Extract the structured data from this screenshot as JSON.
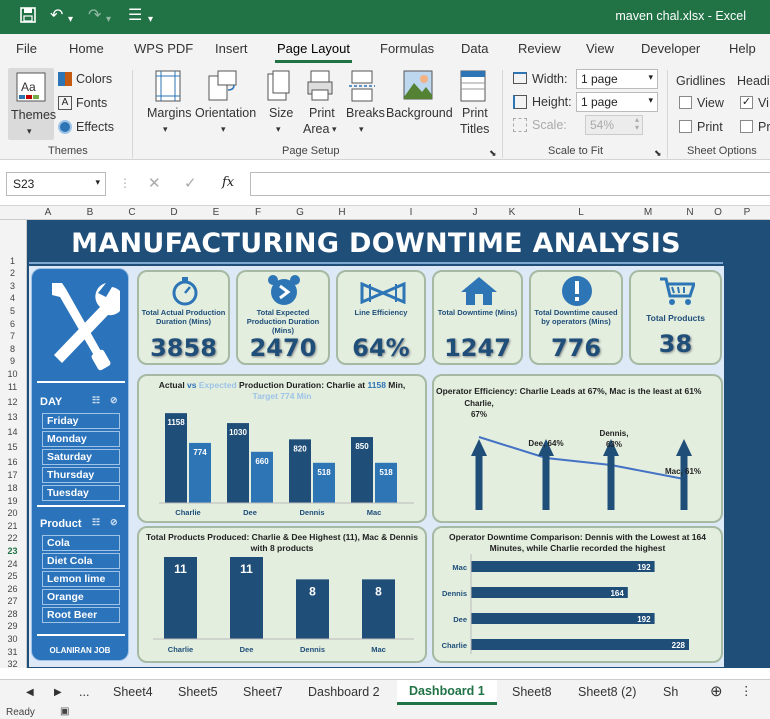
{
  "window": {
    "title": "maven chal.xlsx  -  Excel"
  },
  "menu_tabs": [
    "File",
    "Home",
    "WPS PDF",
    "Insert",
    "Page Layout",
    "Formulas",
    "Data",
    "Review",
    "View",
    "Developer",
    "Help"
  ],
  "active_tab": "Page Layout",
  "ribbon": {
    "themes_group": {
      "label": "Themes",
      "themes": "Themes",
      "colors": "Colors",
      "fonts": "Fonts",
      "effects": "Effects"
    },
    "page_setup": {
      "label": "Page Setup",
      "margins": "Margins",
      "orientation": "Orientation",
      "size": "Size",
      "print_area_1": "Print",
      "print_area_2": "Area",
      "breaks": "Breaks",
      "background": "Background",
      "print_titles_1": "Print",
      "print_titles_2": "Titles"
    },
    "scale_to_fit": {
      "label": "Scale to Fit",
      "width_label": "Width:",
      "width_value": "1 page",
      "height_label": "Height:",
      "height_value": "1 page",
      "scale_label": "Scale:",
      "scale_value": "54%"
    },
    "sheet_options": {
      "label": "Sheet Options",
      "gridlines": "Gridlines",
      "headings": "Headi",
      "view": "View",
      "print": "Print",
      "view2": "Vi",
      "print2": "Pr"
    }
  },
  "formula_bar": {
    "name_box": "S23",
    "fx": "fx",
    "formula": ""
  },
  "columns": [
    "A",
    "B",
    "C",
    "D",
    "E",
    "F",
    "G",
    "H",
    "I",
    "J",
    "K",
    "L",
    "M",
    "N",
    "O",
    "P"
  ],
  "rows": [
    "1",
    "2",
    "3",
    "4",
    "5",
    "6",
    "7",
    "8",
    "9",
    "10",
    "11",
    "12",
    "13",
    "14",
    "15",
    "16",
    "17",
    "18",
    "19",
    "20",
    "21",
    "22",
    "23",
    "24",
    "25",
    "26",
    "27",
    "28",
    "29",
    "30",
    "31",
    "32"
  ],
  "dashboard": {
    "title": "MANUFACTURING DOWNTIME ANALYSIS",
    "slicer_day": {
      "label": "DAY",
      "items": [
        "Friday",
        "Monday",
        "Saturday",
        "Thursday",
        "Tuesday"
      ]
    },
    "slicer_product": {
      "label": "Product",
      "items": [
        "Cola",
        "Diet Cola",
        "Lemon lime",
        "Orange",
        "Root Beer"
      ]
    },
    "author": "OLANIRAN JOB",
    "kpis": [
      {
        "label": "Total Actual Production Duration (Mins)",
        "value": "3858",
        "icon": "stopwatch-icon"
      },
      {
        "label": "Total Expected Production Duration (Mins)",
        "value": "2470",
        "icon": "alarm-clock-icon"
      },
      {
        "label": "Line Efficiency",
        "value": "64%",
        "icon": "bowtie-icon"
      },
      {
        "label": "Total Downtime (Mins)",
        "value": "1247",
        "icon": "house-icon"
      },
      {
        "label": "Total Downtime caused by operators (Mins)",
        "value": "776",
        "icon": "warning-icon"
      },
      {
        "label": "Total Products",
        "value": "38",
        "icon": "cart-icon"
      }
    ]
  },
  "chart_data": [
    {
      "type": "bar",
      "title_parts": {
        "a": "Actual ",
        "vs": "vs ",
        "exp": "Expected",
        "rest": " Production Duration:  Charlie at ",
        "num1": "1158",
        "rest2": " Min, ",
        "line2": "Target 774 Min"
      },
      "categories": [
        "Charlie",
        "Dee",
        "Dennis",
        "Mac"
      ],
      "series": [
        {
          "name": "Actual",
          "values": [
            1158,
            1030,
            820,
            850
          ]
        },
        {
          "name": "Expected",
          "values": [
            774,
            660,
            518,
            518
          ]
        }
      ],
      "colors": {
        "actual": "#1f4e79",
        "expected": "#2e75b6"
      }
    },
    {
      "type": "line",
      "title": "Operator Efficiency: Charlie Leads at 67%, Mac is the least at 61%",
      "categories": [
        "Charlie",
        "Dee",
        "Dennis",
        "Mac"
      ],
      "values": [
        67,
        64,
        63,
        61
      ],
      "labels": [
        [
          "Charlie,",
          "67%"
        ],
        [
          "Dee, 64%"
        ],
        [
          "Dennis,",
          "63%"
        ],
        [
          "Mac, 61%"
        ]
      ]
    },
    {
      "type": "bar",
      "title": "Total Products Produced: Charlie & Dee Highest (11), Mac & Dennis with 8 products",
      "categories": [
        "Charlie",
        "Dee",
        "Dennis",
        "Mac"
      ],
      "values": [
        11,
        11,
        8,
        8
      ]
    },
    {
      "type": "bar",
      "orientation": "horizontal",
      "title": "Operator Downtime Comparison: Dennis with the Lowest at 164 Minutes, while Charlie recorded the highest",
      "categories": [
        "Mac",
        "Dennis",
        "Dee",
        "Charlie"
      ],
      "values": [
        192,
        164,
        192,
        228
      ]
    }
  ],
  "sheet_tabs": [
    "...",
    "Sheet4",
    "Sheet5",
    "Sheet7",
    "Dashboard 2",
    "Dashboard 1",
    "Sheet8",
    "Sheet8 (2)",
    "Sh"
  ],
  "active_sheet": "Dashboard 1",
  "status": "Ready"
}
